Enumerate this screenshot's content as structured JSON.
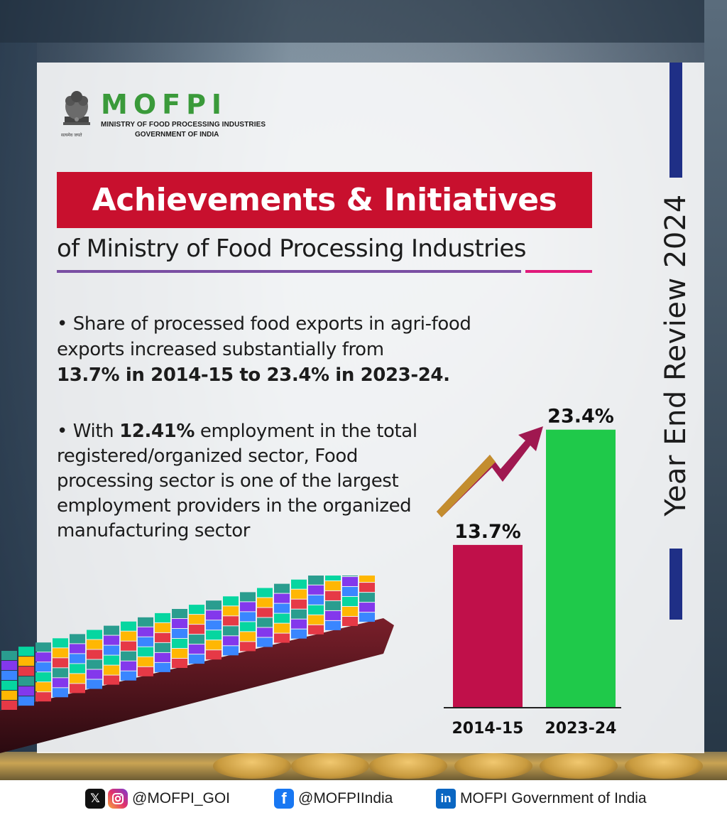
{
  "logo": {
    "wordmark": "MOFPI",
    "ministry_line": "MINISTRY OF FOOD PROCESSING INDUSTRIES",
    "government_line": "GOVERNMENT OF INDIA",
    "emblem_caption": "सत्यमेव जयते",
    "accent_green": "#3a9a3a"
  },
  "header": {
    "banner_title": "Achievements & Initiatives",
    "subtitle_of": "of",
    "subtitle_main": "Ministry of Food Processing Industries",
    "banner_color": "#c8102e"
  },
  "side": {
    "vertical_title": "Year End Review 2024",
    "bar_color": "#1f2f86"
  },
  "bullets": {
    "b1_line1": "• Share of processed food exports in agri-food exports increased substantially from",
    "b1_bold": "13.7% in 2014-15 to 23.4% in 2023-24.",
    "b2_prefix": "• With",
    "b2_bold": "12.41%",
    "b2_rest": "employment in the total registered/organized sector, Food processing sector is one of the largest employment providers in the organized manufacturing sector"
  },
  "chart_data": {
    "type": "bar",
    "categories": [
      "2014-15",
      "2023-24"
    ],
    "values": [
      13.7,
      23.4
    ],
    "data_labels": [
      "13.7%",
      "23.4%"
    ],
    "colors": [
      "#c0104a",
      "#1fc94a"
    ],
    "ylim": [
      0,
      25
    ],
    "grid": false,
    "legend": "none"
  },
  "footer": {
    "twitter_instagram": "@MOFPI_GOI",
    "facebook": "@MOFPIIndia",
    "linkedin": "MOFPI Government of India",
    "x_icon_text": "𝕏",
    "fb_icon_text": "f",
    "in_icon_text": "in"
  }
}
